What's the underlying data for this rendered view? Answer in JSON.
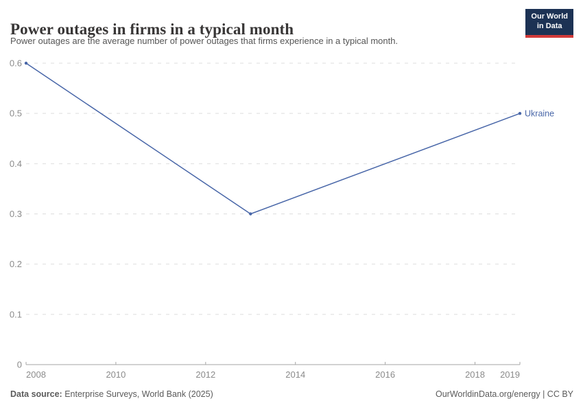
{
  "header": {
    "title": "Power outages in firms in a typical month",
    "subtitle": "Power outages are the average number of power outages that firms experience in a typical month."
  },
  "logo": {
    "line1": "Our World",
    "line2": "in Data"
  },
  "chart_data": {
    "type": "line",
    "title": "Power outages in firms in a typical month",
    "xlabel": "",
    "ylabel": "",
    "xlim": [
      2008,
      2019
    ],
    "ylim": [
      0,
      0.6
    ],
    "grid": "horizontal-dashed",
    "legend_position": "end-of-line-label",
    "x_ticks": [
      2008,
      2010,
      2012,
      2014,
      2016,
      2018,
      2019
    ],
    "y_ticks": [
      0,
      0.1,
      0.2,
      0.3,
      0.4,
      0.5,
      0.6
    ],
    "y_tick_labels": [
      "0",
      "0.1",
      "0.2",
      "0.3",
      "0.4",
      "0.5",
      "0.6"
    ],
    "series": [
      {
        "name": "Ukraine",
        "color": "#4866a8",
        "x": [
          2008,
          2013,
          2019
        ],
        "values": [
          0.6,
          0.3,
          0.5
        ]
      }
    ]
  },
  "footer": {
    "datasource_label": "Data source:",
    "datasource_text": " Enterprise Surveys, World Bank (2025)",
    "credit": "OurWorldinData.org/energy | CC BY"
  },
  "colors": {
    "line": "#4866a8",
    "grid": "#dedede",
    "axis": "#a5a5a5",
    "tick_label": "#8b8b8b",
    "logo_bg": "#1c3254",
    "logo_accent": "#d23a39"
  }
}
